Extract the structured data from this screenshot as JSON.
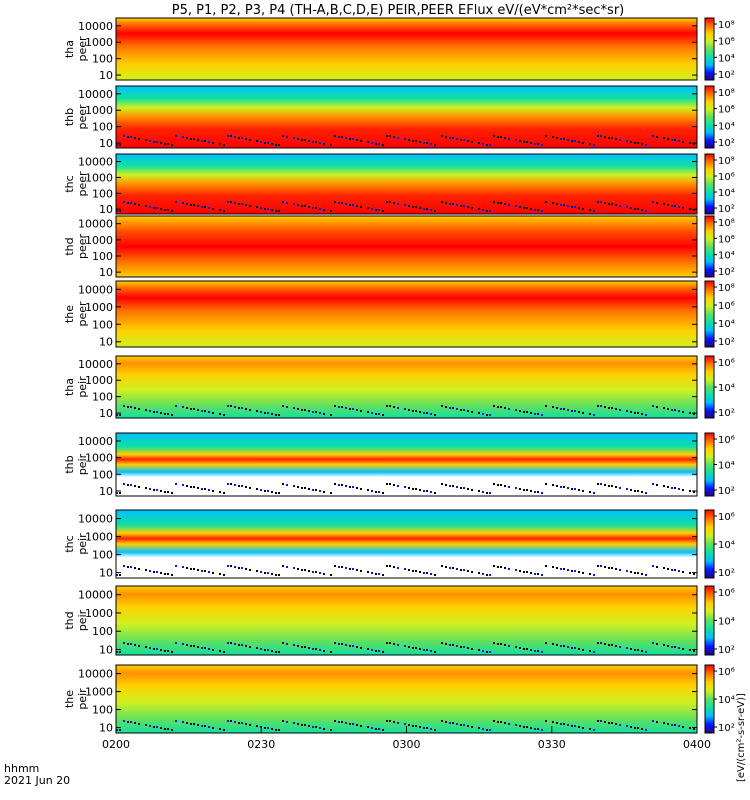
{
  "title": "P5, P1, P2, P3, P4 (TH-A,B,C,D,E) PEIR,PEER EFlux eV/(eV*cm²*sec*sr)",
  "colorbar_label": "[eV/(cm²-s-sr-eV)]",
  "colors": {
    "background": "#ffffff",
    "frame": "#000000",
    "colormap": [
      "#2a0080",
      "#0018ff",
      "#00c0ff",
      "#10e0a0",
      "#60e060",
      "#d0f020",
      "#ffd000",
      "#ff7000",
      "#ff0000"
    ]
  },
  "chart_data": {
    "type": "heatmap",
    "x_ticks": [
      "0200",
      "0230",
      "0300",
      "0330",
      "0400"
    ],
    "x_label_line1": "hhmm",
    "x_label_line2": "2021 Jun 20",
    "y_scale": "log",
    "y_ticks": [
      "10",
      "100",
      "1000",
      "10000"
    ],
    "ylim": [
      5,
      30000
    ],
    "colorbar_scale": "log",
    "panels": [
      {
        "probe": "tha",
        "species": "peer",
        "label": "tha peer",
        "cb_ticks": [
          "10²",
          "10⁴",
          "10⁶",
          "10⁸"
        ],
        "peak_band": "high",
        "intensity": 0.9
      },
      {
        "probe": "thb",
        "species": "peer",
        "label": "thb peer",
        "cb_ticks": [
          "10²",
          "10⁴",
          "10⁶",
          "10⁸"
        ],
        "peak_band": "low",
        "intensity": 0.85
      },
      {
        "probe": "thc",
        "species": "peer",
        "label": "thc peer",
        "cb_ticks": [
          "10²",
          "10⁴",
          "10⁶",
          "10⁸"
        ],
        "peak_band": "low",
        "intensity": 0.8
      },
      {
        "probe": "thd",
        "species": "peer",
        "label": "thd peer",
        "cb_ticks": [
          "10²",
          "10⁴",
          "10⁶",
          "10⁸"
        ],
        "peak_band": "mid",
        "intensity": 0.9
      },
      {
        "probe": "the",
        "species": "peer",
        "label": "the peer",
        "cb_ticks": [
          "10²",
          "10⁴",
          "10⁶",
          "10⁸"
        ],
        "peak_band": "high",
        "intensity": 0.85
      },
      {
        "probe": "tha",
        "species": "peir",
        "label": "tha peir",
        "cb_ticks": [
          "10²",
          "10⁴",
          "10⁶"
        ],
        "peak_band": "high",
        "intensity": 0.55
      },
      {
        "probe": "thb",
        "species": "peir",
        "label": "thb peir",
        "cb_ticks": [
          "10²",
          "10⁴",
          "10⁶"
        ],
        "peak_band": "narrow",
        "intensity": 0.7
      },
      {
        "probe": "thc",
        "species": "peir",
        "label": "thc peir",
        "cb_ticks": [
          "10²",
          "10⁴",
          "10⁶"
        ],
        "peak_band": "narrow",
        "intensity": 0.7
      },
      {
        "probe": "thd",
        "species": "peir",
        "label": "thd peir",
        "cb_ticks": [
          "10²",
          "10⁴",
          "10⁶"
        ],
        "peak_band": "high",
        "intensity": 0.55
      },
      {
        "probe": "the",
        "species": "peir",
        "label": "the peir",
        "cb_ticks": [
          "10²",
          "10⁴",
          "10⁶"
        ],
        "peak_band": "high",
        "intensity": 0.55
      }
    ]
  }
}
